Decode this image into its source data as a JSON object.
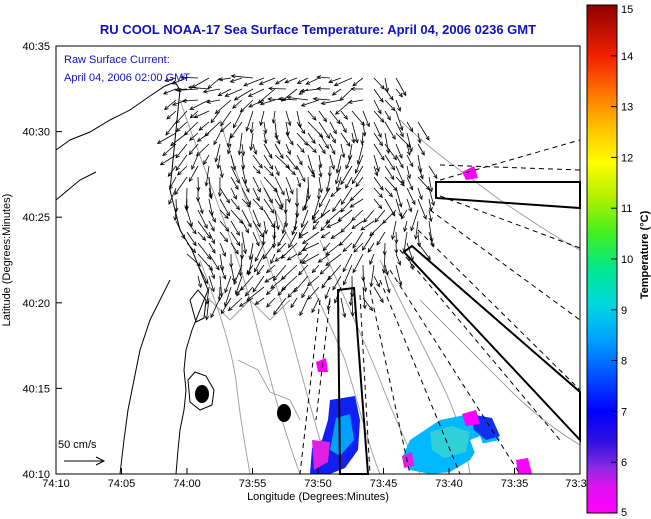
{
  "chart_data": {
    "type": "heatmap",
    "title": "RU COOL  NOAA-17  Sea Surface Temperature:  April 04, 2006 0236 GMT",
    "annotation_lines": [
      "Raw Surface Current:",
      "April 04, 2006 02:00 GMT"
    ],
    "scale_vector_label": "50 cm/s",
    "xlabel": "Longitude (Degrees:Minutes)",
    "ylabel": "Latitude (Degrees:Minutes)",
    "x_ticks": [
      "74:10",
      "74:05",
      "74:00",
      "73:55",
      "73:50",
      "73:45",
      "73:40",
      "73:35",
      "73:3"
    ],
    "y_ticks": [
      "40:10",
      "40:15",
      "40:20",
      "40:25",
      "40:30",
      "40:35"
    ],
    "colorbar": {
      "label": "Temperature (°C)",
      "range": [
        5,
        15
      ],
      "ticks": [
        "5",
        "6",
        "7",
        "8",
        "9",
        "10",
        "11",
        "12",
        "13",
        "14",
        "15"
      ]
    },
    "colors": {
      "title": "#1010c0",
      "coast": "#000000",
      "contour": "#9a9a9a",
      "vector": "#000000"
    }
  }
}
